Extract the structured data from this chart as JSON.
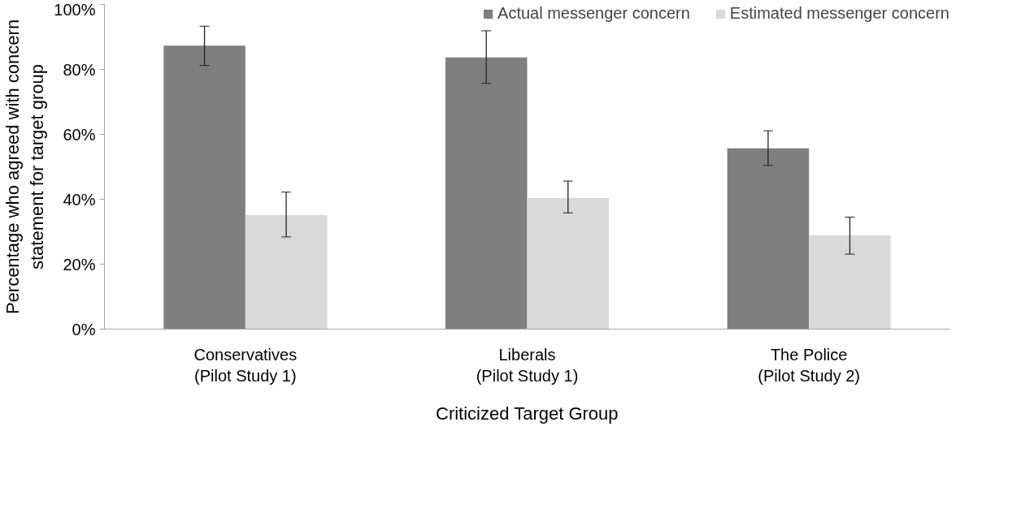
{
  "chart_data": {
    "type": "bar",
    "xlabel": "Criticized Target Group",
    "ylabel": "Percentage who agreed with concern\nstatement for target group",
    "categories": [
      "Conservatives\n(Pilot Study 1)",
      "Liberals\n(Pilot Study 1)",
      "The Police\n(Pilot Study 2)"
    ],
    "series": [
      {
        "name": "Actual messenger concern",
        "color": "#7f7f7f",
        "values": [
          87.3,
          83.7,
          55.7
        ],
        "errors": [
          [
            81.2,
            93.3
          ],
          [
            75.7,
            91.9
          ],
          [
            50.4,
            61.1
          ]
        ]
      },
      {
        "name": "Estimated messenger concern",
        "color": "#d9d9d9",
        "values": [
          35.1,
          40.4,
          28.9
        ],
        "errors": [
          [
            28.4,
            42.2
          ],
          [
            35.8,
            45.6
          ],
          [
            23.1,
            34.5
          ]
        ]
      }
    ],
    "ylim": [
      0,
      100
    ],
    "yticks": [
      {
        "value": 0,
        "label": "0%"
      },
      {
        "value": 20,
        "label": "20%"
      },
      {
        "value": 40,
        "label": "40%"
      },
      {
        "value": 60,
        "label": "60%"
      },
      {
        "value": 80,
        "label": "80%"
      },
      {
        "value": 100,
        "label": "100%"
      }
    ],
    "grid": false,
    "legend": "top right"
  }
}
